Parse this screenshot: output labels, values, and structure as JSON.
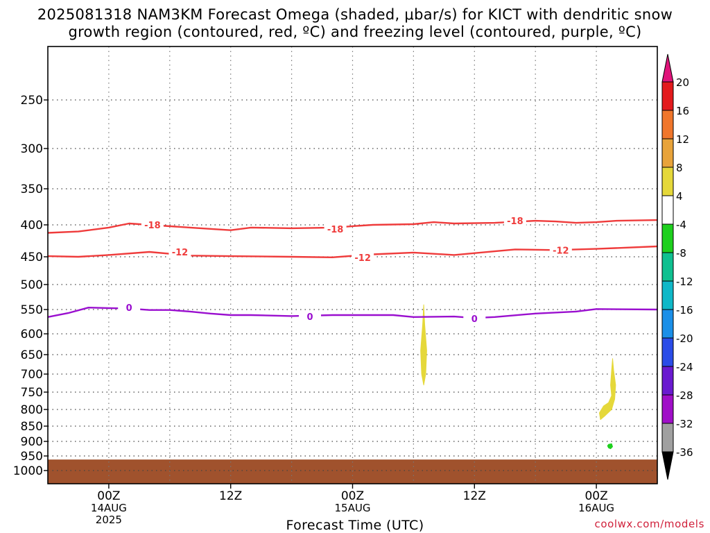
{
  "title_line1": "2025081318 NAM3KM Forecast Omega (shaded, μbar/s) for KICT with dendritic snow",
  "title_line2": "growth region (contoured, red, ºC) and freezing level (contoured, purple, ºC)",
  "credit": "coolwx.com/models",
  "colors": {
    "dgz": "#ef3b3b",
    "freezing": "#9a0fcf",
    "ground": "#a0522d",
    "omega_pos_4_8": "#e5d83a",
    "omega_neg_4_8": "#1ed01e"
  },
  "chart_data": {
    "type": "contour",
    "xlabel": "Forecast Time (UTC)",
    "ylabel": "",
    "x_ticks": [
      {
        "hour": 6,
        "lines": [
          "00Z",
          "14AUG",
          "2025"
        ]
      },
      {
        "hour": 18,
        "lines": [
          "12Z"
        ]
      },
      {
        "hour": 30,
        "lines": [
          "00Z",
          "15AUG"
        ]
      },
      {
        "hour": 42,
        "lines": [
          "12Z"
        ]
      },
      {
        "hour": 54,
        "lines": [
          "00Z",
          "16AUG"
        ]
      }
    ],
    "xlim": [
      0,
      60
    ],
    "y_ticks": [
      250,
      300,
      350,
      400,
      450,
      500,
      550,
      600,
      650,
      700,
      750,
      800,
      850,
      900,
      950,
      1000
    ],
    "ylim_hPa": [
      200,
      1040
    ],
    "y_scale": "log-pressure",
    "grid": true,
    "surface_pressure_hPa": 962,
    "contours": [
      {
        "name": "-18",
        "color": "dgz",
        "points": [
          [
            0,
            412
          ],
          [
            3,
            410
          ],
          [
            6,
            404
          ],
          [
            8,
            398
          ],
          [
            10,
            400
          ],
          [
            14,
            404
          ],
          [
            18,
            408
          ],
          [
            20,
            404
          ],
          [
            24,
            405
          ],
          [
            28,
            404
          ],
          [
            32,
            400
          ],
          [
            36,
            399
          ],
          [
            38,
            396
          ],
          [
            40,
            398
          ],
          [
            44,
            397
          ],
          [
            48,
            394
          ],
          [
            50,
            395
          ],
          [
            52,
            397
          ],
          [
            54,
            396
          ],
          [
            56,
            394
          ],
          [
            60,
            393
          ]
        ],
        "labels": [
          {
            "x": 10.3,
            "y": 400
          },
          {
            "x": 28.3,
            "y": 406
          },
          {
            "x": 46,
            "y": 394
          }
        ]
      },
      {
        "name": "-12",
        "color": "dgz",
        "points": [
          [
            0,
            449
          ],
          [
            3,
            450
          ],
          [
            6,
            447
          ],
          [
            10,
            442
          ],
          [
            14,
            448
          ],
          [
            18,
            449
          ],
          [
            24,
            450
          ],
          [
            28,
            451
          ],
          [
            32,
            446
          ],
          [
            36,
            443
          ],
          [
            40,
            447
          ],
          [
            44,
            441
          ],
          [
            46,
            438
          ],
          [
            50,
            439
          ],
          [
            54,
            437
          ],
          [
            60,
            433
          ]
        ],
        "labels": [
          {
            "x": 13,
            "y": 442
          },
          {
            "x": 31,
            "y": 451
          },
          {
            "x": 50.5,
            "y": 439
          }
        ]
      },
      {
        "name": "0",
        "color": "freezing",
        "points": [
          [
            0,
            565
          ],
          [
            2,
            557
          ],
          [
            4,
            546
          ],
          [
            6,
            547
          ],
          [
            8,
            548
          ],
          [
            10,
            551
          ],
          [
            12,
            551
          ],
          [
            14,
            554
          ],
          [
            16,
            558
          ],
          [
            18,
            561
          ],
          [
            20,
            561
          ],
          [
            24,
            563
          ],
          [
            28,
            561
          ],
          [
            32,
            561
          ],
          [
            34,
            561
          ],
          [
            36,
            565
          ],
          [
            40,
            564
          ],
          [
            42,
            567
          ],
          [
            44,
            565
          ],
          [
            48,
            558
          ],
          [
            52,
            554
          ],
          [
            54,
            549
          ],
          [
            60,
            550
          ]
        ],
        "labels": [
          {
            "x": 8,
            "y": 546
          },
          {
            "x": 25.8,
            "y": 564
          },
          {
            "x": 42,
            "y": 568
          }
        ]
      }
    ],
    "omega_shading": [
      {
        "range": "4 to 8",
        "color": "omega_pos_4_8",
        "points": [
          [
            37.1,
            580
          ],
          [
            37.3,
            640
          ],
          [
            37.2,
            700
          ],
          [
            37.0,
            730
          ],
          [
            36.8,
            700
          ],
          [
            36.7,
            640
          ],
          [
            36.9,
            580
          ],
          [
            37.0,
            540
          ]
        ]
      },
      {
        "range": "4 to 8",
        "color": "omega_pos_4_8",
        "points": [
          [
            55.2,
            780
          ],
          [
            55.5,
            760
          ],
          [
            55.4,
            730
          ],
          [
            55.5,
            690
          ],
          [
            55.6,
            660
          ],
          [
            55.7,
            690
          ],
          [
            55.9,
            730
          ],
          [
            55.8,
            770
          ],
          [
            55.5,
            800
          ],
          [
            54.8,
            820
          ],
          [
            54.4,
            830
          ],
          [
            54.3,
            810
          ],
          [
            54.7,
            790
          ]
        ]
      },
      {
        "range": "-4 to -8",
        "color": "omega_neg_4_8",
        "points": [
          [
            55.2,
            910
          ],
          [
            55.5,
            908
          ],
          [
            55.6,
            918
          ],
          [
            55.4,
            925
          ],
          [
            55.2,
            922
          ],
          [
            55.1,
            915
          ]
        ]
      }
    ],
    "colorbar": {
      "labels": [
        "20",
        "16",
        "12",
        "8",
        "4",
        "-4",
        "-8",
        "-12",
        "-16",
        "-20",
        "-24",
        "-28",
        "-32",
        "-36"
      ],
      "colors": [
        "#e31a1c",
        "#f0762b",
        "#e8a33a",
        "#e5d83a",
        "#ffffff",
        "#1ed01e",
        "#0fc090",
        "#0fb8c8",
        "#1a8fe8",
        "#2a4ce8",
        "#6a1ad0",
        "#a00fc8",
        "#a0a0a0"
      ],
      "top_cap": "#e0147a",
      "bottom_cap": "#000000"
    }
  }
}
